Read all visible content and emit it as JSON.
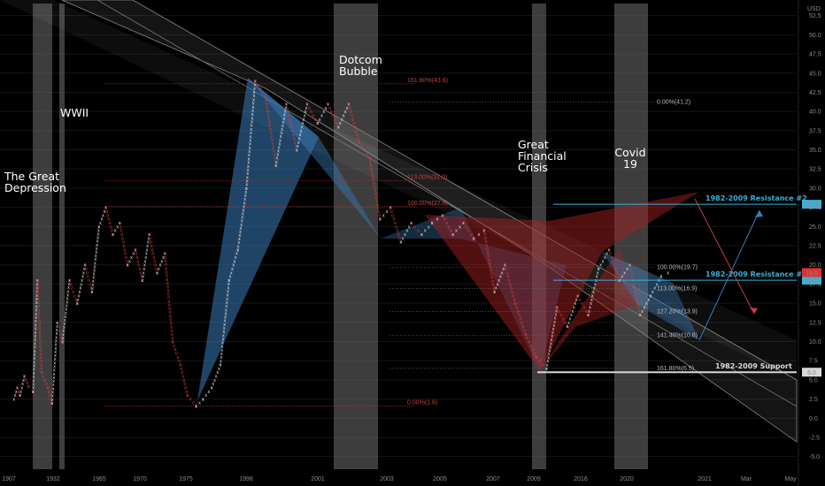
{
  "chart_data": {
    "type": "point-and-figure",
    "currency": "USD",
    "y_ticks": [
      "-5.0",
      "-2.5",
      "0.0",
      "2.5",
      "5.0",
      "7.5",
      "10.0",
      "12.5",
      "15.0",
      "17.5",
      "20.0",
      "22.5",
      "25.0",
      "27.5",
      "30.0",
      "32.5",
      "35.0",
      "37.5",
      "40.0",
      "42.5",
      "45.0",
      "47.5",
      "50.0",
      "52.5"
    ],
    "y_tick_values": [
      -5,
      -2.5,
      0,
      2.5,
      5,
      7.5,
      10,
      12.5,
      15,
      17.5,
      20,
      22.5,
      25,
      27.5,
      30,
      32.5,
      35,
      37.5,
      40,
      42.5,
      45,
      47.5,
      50,
      52.5
    ],
    "ylim": [
      -5.5,
      53.5
    ],
    "x_ticks": [
      "1907",
      "1932",
      "1965",
      "1970",
      "1975",
      "1998",
      "2001",
      "2003",
      "2005",
      "2007",
      "2009",
      "2016",
      "2020",
      "2021",
      "Mar",
      "May"
    ],
    "events": [
      {
        "label": "The Great\nDepression",
        "start": "1929",
        "end": "1932"
      },
      {
        "label": "WWII",
        "start": "1939",
        "end": "1945"
      },
      {
        "label": "Dotcom\nBubble",
        "start": "2000",
        "end": "2002"
      },
      {
        "label": "Great\nFinancial\nCrisis",
        "start": "2008",
        "end": "2009"
      },
      {
        "label": "Covid\n19",
        "start": "2020",
        "end": "2020"
      }
    ],
    "fib_levels_left": [
      {
        "label": "161.80%(43.6)",
        "value": 43.6
      },
      {
        "label": "113.00%(31.0)",
        "value": 31.0
      },
      {
        "label": "100.00%(27.6)",
        "value": 27.6
      },
      {
        "label": "0.00%(1.6)",
        "value": 1.6
      }
    ],
    "fib_levels_right": [
      {
        "label": "0.00%(41.2)",
        "value": 41.2
      },
      {
        "label": "100.00%(19.7)",
        "value": 19.7
      },
      {
        "label": "113.00%(16.9)",
        "value": 16.9
      },
      {
        "label": "127.20%(13.9)",
        "value": 13.9
      },
      {
        "label": "141.40%(10.8)",
        "value": 10.8
      },
      {
        "label": "161.80%(6.5)",
        "value": 6.5
      }
    ],
    "levels": [
      {
        "label": "1982-2009 Resistance #2",
        "value": 27.9,
        "tag": "27.9",
        "color": "#3ab0d8"
      },
      {
        "label": "1982-2009 Resistance #1",
        "value": 18.0,
        "tag": "18.0",
        "color": "#3ab0d8"
      },
      {
        "label": "1982-2009 Support",
        "value": 6.0,
        "tag": "6.0",
        "color": "#d8d8d8"
      }
    ],
    "current_price_tag": {
      "value": 19.0,
      "tag": "19.0",
      "color": "#e03030"
    },
    "series_path": [
      [
        1.2,
        2.5
      ],
      [
        1.6,
        4.0
      ],
      [
        1.9,
        3.0
      ],
      [
        2.4,
        5.5
      ],
      [
        2.9,
        4.2
      ],
      [
        3.4,
        3.5
      ],
      [
        3.9,
        18.0
      ],
      [
        4.4,
        6.0
      ],
      [
        5.1,
        4.0
      ],
      [
        5.6,
        2.0
      ],
      [
        6.2,
        12.5
      ],
      [
        6.8,
        10.0
      ],
      [
        7.6,
        18.0
      ],
      [
        8.5,
        15.0
      ],
      [
        9.4,
        20.0
      ],
      [
        10.2,
        16.5
      ],
      [
        11.0,
        25.0
      ],
      [
        11.8,
        27.5
      ],
      [
        12.6,
        24.0
      ],
      [
        13.4,
        25.5
      ],
      [
        14.3,
        20.0
      ],
      [
        15.2,
        22.0
      ],
      [
        16.0,
        18.0
      ],
      [
        16.8,
        24.0
      ],
      [
        17.7,
        19.0
      ],
      [
        18.6,
        21.5
      ],
      [
        19.5,
        10.0
      ],
      [
        20.4,
        7.0
      ],
      [
        21.2,
        3.0
      ],
      [
        22.2,
        1.6
      ],
      [
        23.0,
        2.5
      ],
      [
        24.0,
        4.0
      ],
      [
        25.0,
        7.0
      ],
      [
        26.0,
        18.0
      ],
      [
        27.0,
        22.0
      ],
      [
        28.0,
        30.0
      ],
      [
        29.0,
        44.0
      ],
      [
        30.2,
        42.0
      ],
      [
        31.4,
        33.0
      ],
      [
        32.6,
        41.0
      ],
      [
        33.8,
        35.0
      ],
      [
        35.0,
        41.0
      ],
      [
        36.2,
        38.5
      ],
      [
        37.4,
        41.0
      ],
      [
        38.6,
        38.0
      ],
      [
        39.8,
        41.0
      ],
      [
        41.0,
        36.0
      ],
      [
        42.2,
        34.0
      ],
      [
        43.4,
        26.0
      ],
      [
        44.6,
        27.5
      ],
      [
        45.8,
        23.0
      ],
      [
        47.0,
        25.5
      ],
      [
        48.2,
        24.0
      ],
      [
        49.4,
        25.5
      ],
      [
        50.6,
        26.5
      ],
      [
        51.8,
        24.0
      ],
      [
        53.0,
        25.5
      ],
      [
        54.2,
        23.5
      ],
      [
        55.4,
        24.5
      ],
      [
        56.6,
        16.5
      ],
      [
        57.8,
        20.0
      ],
      [
        59.0,
        15.0
      ],
      [
        60.2,
        11.0
      ],
      [
        61.4,
        8.0
      ],
      [
        62.6,
        6.5
      ],
      [
        63.8,
        14.5
      ],
      [
        65.0,
        12.0
      ],
      [
        66.2,
        16.0
      ],
      [
        67.4,
        13.5
      ],
      [
        68.6,
        19.5
      ],
      [
        69.8,
        22.0
      ],
      [
        71.0,
        18.0
      ],
      [
        72.2,
        20.0
      ],
      [
        73.4,
        13.5
      ],
      [
        74.6,
        16.0
      ],
      [
        75.8,
        18.5
      ],
      [
        76.6,
        19.0
      ]
    ]
  }
}
